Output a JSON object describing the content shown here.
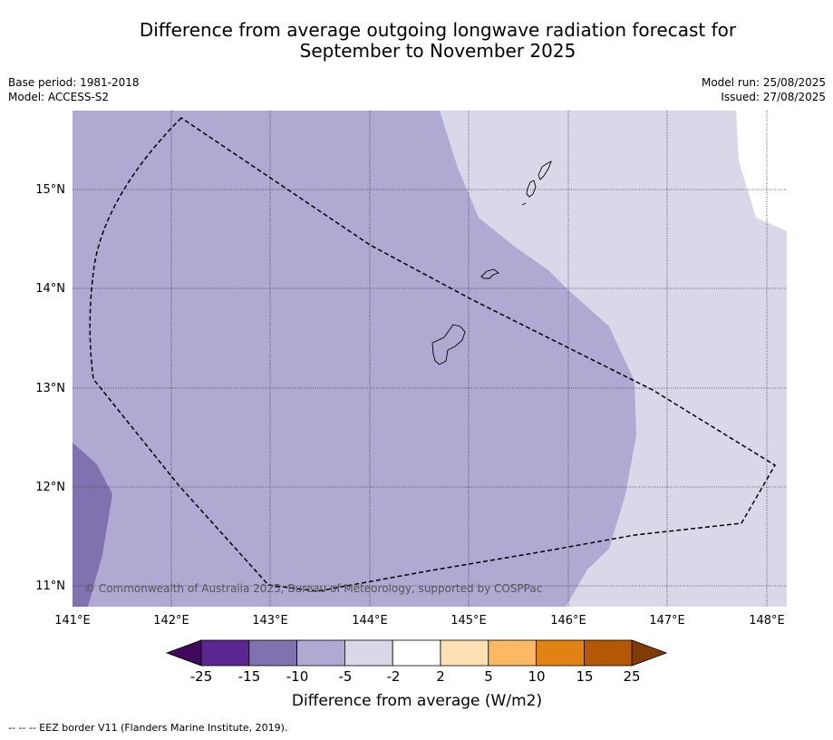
{
  "title_line1": "Difference from average outgoing longwave radiation forecast for",
  "title_line2": "September to November 2025",
  "meta": {
    "base_period": "Base period: 1981-2018",
    "model": "Model: ACCESS-S2",
    "model_run": "Model run: 25/08/2025",
    "issued": "Issued: 27/08/2025"
  },
  "map": {
    "lon_ticks": [
      "141°E",
      "142°E",
      "143°E",
      "144°E",
      "145°E",
      "146°E",
      "147°E",
      "148°E"
    ],
    "lat_ticks": [
      "15°N",
      "14°N",
      "13°N",
      "12°N",
      "11°N"
    ],
    "copyright": "© Commonwealth of Australia 2025, Bureau of Meteorology, supported by COSPPac"
  },
  "legend": {
    "title": "Difference from average (W/m2)",
    "tick_labels": [
      "-25",
      "-15",
      "-10",
      "-5",
      "-2",
      "2",
      "5",
      "10",
      "15",
      "25"
    ],
    "colors": {
      "below_min": "#3f0a5c",
      "bins": [
        "#5b2690",
        "#8072ae",
        "#b0aad2",
        "#d8d8e8",
        "#ffffff",
        "#fde1b5",
        "#fdb863",
        "#e08314",
        "#b35806"
      ],
      "above_max": "#7f3b08"
    }
  },
  "footnote": "--  --  -- EEZ border V11 (Flanders Marine Institute, 2019)."
}
